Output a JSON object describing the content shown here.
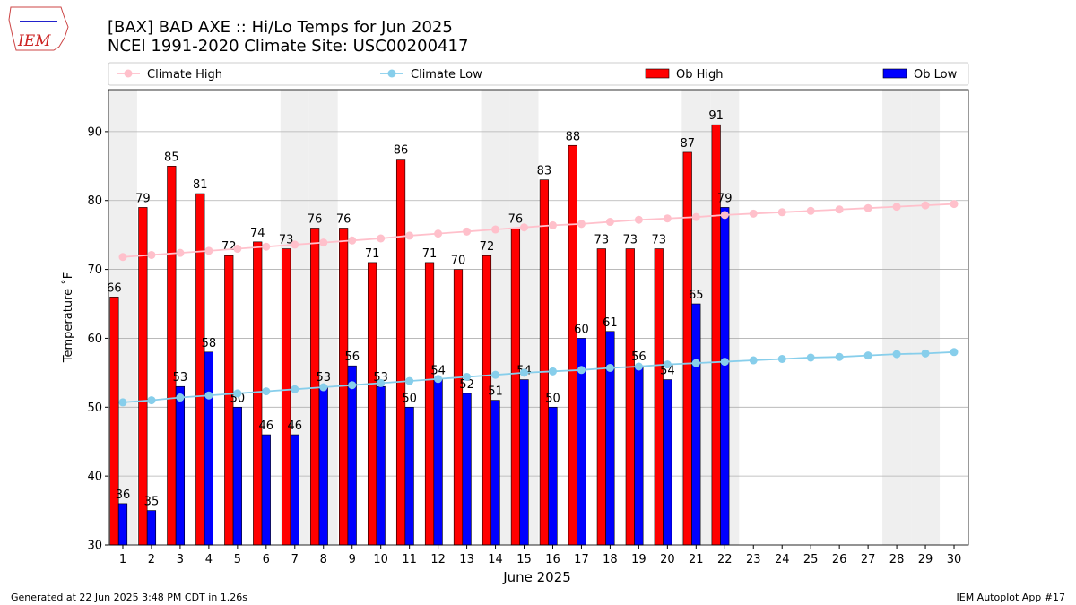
{
  "logo_text": "IEM",
  "footer_left": "Generated at 22 Jun 2025 3:48 PM CDT in 1.26s",
  "footer_right": "IEM Autoplot App #17",
  "chart_data": {
    "type": "bar_line",
    "title": "[BAX] BAD AXE :: Hi/Lo Temps for Jun 2025",
    "subtitle": "NCEI 1991-2020 Climate Site: USC00200417",
    "x_label": "June 2025",
    "y_label": "Temperature ˚F",
    "x": [
      1,
      2,
      3,
      4,
      5,
      6,
      7,
      8,
      9,
      10,
      11,
      12,
      13,
      14,
      15,
      16,
      17,
      18,
      19,
      20,
      21,
      22,
      23,
      24,
      25,
      26,
      27,
      28,
      29,
      30
    ],
    "xlim": [
      0.5,
      30.5
    ],
    "xticks": [
      1,
      2,
      3,
      4,
      5,
      6,
      7,
      8,
      9,
      10,
      11,
      12,
      13,
      14,
      15,
      16,
      17,
      18,
      19,
      20,
      21,
      22,
      23,
      24,
      25,
      26,
      27,
      28,
      29,
      30
    ],
    "ylim": [
      30,
      96.1
    ],
    "yticks": [
      30,
      40,
      50,
      60,
      70,
      80,
      90
    ],
    "grid": true,
    "shaded_days": [
      1,
      7,
      8,
      14,
      15,
      21,
      22,
      28,
      29
    ],
    "shade_color": "#efefef",
    "series": [
      {
        "name": "Climate High",
        "kind": "line",
        "color": "pink",
        "values": [
          71.8,
          72.1,
          72.4,
          72.7,
          73.0,
          73.3,
          73.6,
          73.9,
          74.2,
          74.5,
          74.9,
          75.2,
          75.5,
          75.8,
          76.1,
          76.4,
          76.6,
          76.9,
          77.2,
          77.4,
          77.6,
          77.9,
          78.1,
          78.3,
          78.5,
          78.7,
          78.9,
          79.1,
          79.3,
          79.5
        ]
      },
      {
        "name": "Climate Low",
        "kind": "line",
        "color": "skyblue",
        "values": [
          50.7,
          51.0,
          51.4,
          51.7,
          52.0,
          52.3,
          52.6,
          52.9,
          53.2,
          53.5,
          53.8,
          54.1,
          54.4,
          54.7,
          55.0,
          55.2,
          55.4,
          55.7,
          55.9,
          56.2,
          56.4,
          56.6,
          56.8,
          57.0,
          57.2,
          57.3,
          57.5,
          57.7,
          57.8,
          58.0
        ]
      },
      {
        "name": "Ob High",
        "kind": "bar",
        "offset": -0.3,
        "color": "red",
        "values": [
          66,
          79,
          85,
          81,
          72,
          74,
          73,
          76,
          76,
          71,
          86,
          71,
          70,
          72,
          76,
          83,
          88,
          73,
          73,
          73,
          87,
          91,
          null,
          null,
          null,
          null,
          null,
          null,
          null,
          null
        ]
      },
      {
        "name": "Ob Low",
        "kind": "bar",
        "offset": 0,
        "color": "blue",
        "values": [
          36,
          35,
          53,
          58,
          50,
          46,
          46,
          53,
          56,
          53,
          50,
          54,
          52,
          51,
          54,
          50,
          60,
          61,
          56,
          54,
          65,
          79,
          null,
          null,
          null,
          null,
          null,
          null,
          null,
          null
        ]
      }
    ]
  }
}
